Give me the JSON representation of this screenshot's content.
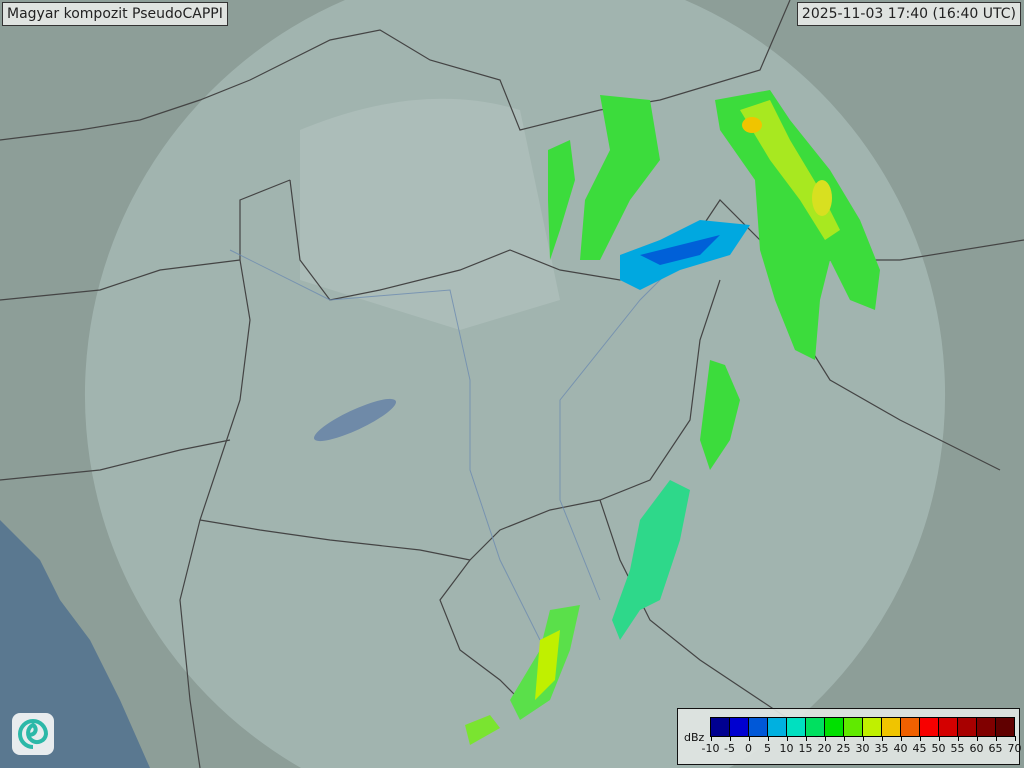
{
  "header": {
    "title": "Magyar kompozit  PseudoCAPPI",
    "timestamp": "2025-11-03 17:40 (16:40 UTC)"
  },
  "legend": {
    "unit": "dBz",
    "ticks": [
      "-10",
      "-5",
      "0",
      "5",
      "10",
      "15",
      "20",
      "25",
      "30",
      "35",
      "40",
      "45",
      "50",
      "55",
      "60",
      "65",
      "70"
    ],
    "colors": [
      "#000090",
      "#0000d0",
      "#0058d8",
      "#00b0e0",
      "#00e0c0",
      "#00e060",
      "#00e000",
      "#60ea00",
      "#c0f000",
      "#f0c400",
      "#f06000",
      "#f80000",
      "#d40000",
      "#a80000",
      "#800000",
      "#600000"
    ]
  },
  "logo": {
    "icon": "swirl-logo-icon"
  },
  "colors": {
    "land": "#8d9e98",
    "coverage": "#b3c6c2",
    "sea": "#5a7890",
    "border": "#444"
  }
}
